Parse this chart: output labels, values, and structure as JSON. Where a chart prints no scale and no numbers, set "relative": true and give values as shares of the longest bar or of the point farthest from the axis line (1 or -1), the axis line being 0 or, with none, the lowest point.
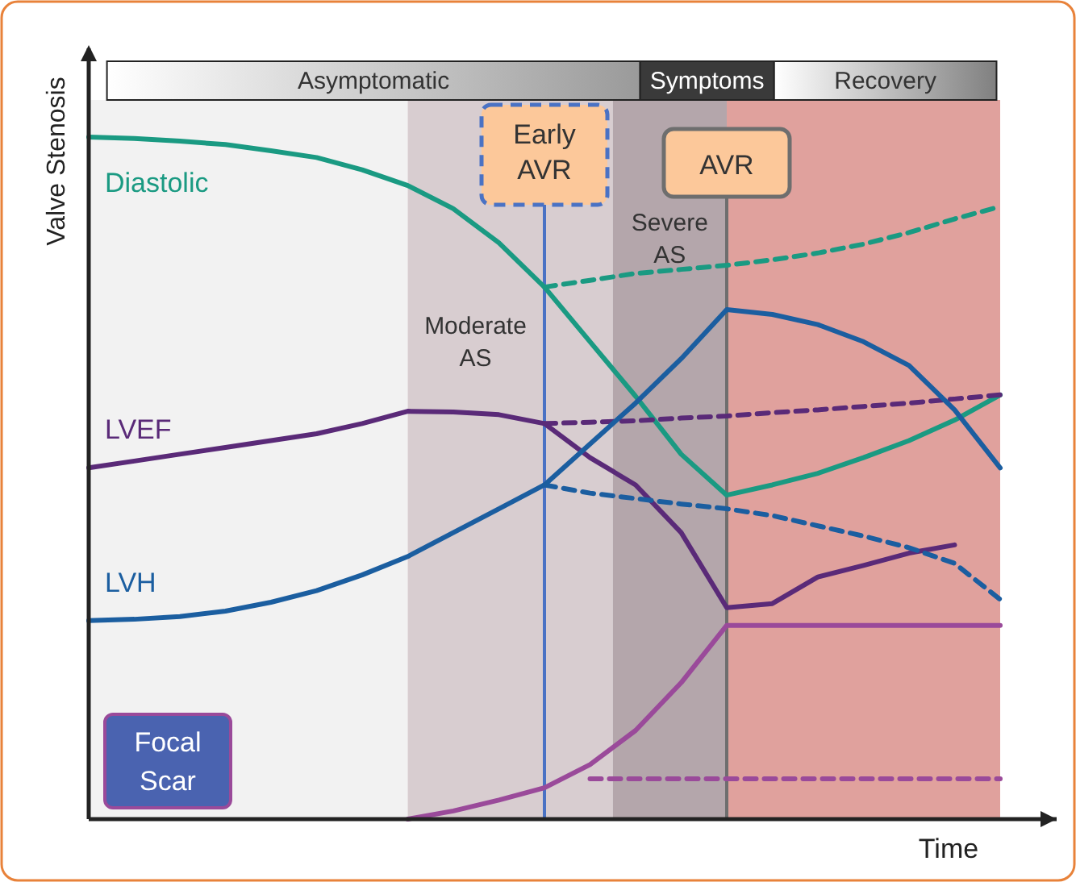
{
  "chart_data": {
    "type": "line",
    "relative": true,
    "xlabel": "Time",
    "ylabel": "Valve Stenosis",
    "categories": [
      null,
      null,
      null,
      null,
      null,
      null,
      null,
      null,
      null,
      null,
      null,
      null,
      null,
      null,
      null,
      null,
      null,
      null,
      null,
      null,
      null
    ],
    "annotations": [
      "Asymptomatic",
      "Symptoms",
      "Recovery",
      "Moderate AS",
      "Severe AS",
      "Early AVR",
      "AVR"
    ],
    "series": [
      {
        "name": "Diastolic",
        "color": "#1a9a82",
        "values": [
          1.0,
          0.998,
          0.994,
          0.989,
          0.98,
          0.97,
          0.952,
          0.929,
          0.895,
          0.845,
          0.78,
          0.7,
          0.62,
          0.535,
          0.475,
          0.49,
          0.507,
          0.53,
          0.555,
          0.585,
          0.622
        ]
      },
      {
        "color": "#1a9a82",
        "line_style": "dashed",
        "values": [
          null,
          null,
          null,
          null,
          null,
          null,
          null,
          null,
          null,
          null,
          0.78,
          0.79,
          0.8,
          0.806,
          0.812,
          0.82,
          0.83,
          0.843,
          0.86,
          0.88,
          0.898
        ]
      },
      {
        "name": "LVEF",
        "color": "#5a2a78",
        "values": [
          0.515,
          0.525,
          0.535,
          0.545,
          0.555,
          0.565,
          0.58,
          0.598,
          0.597,
          0.593,
          0.58,
          0.53,
          0.49,
          0.42,
          0.31,
          0.316,
          0.355,
          0.372,
          0.39,
          0.402,
          null
        ]
      },
      {
        "color": "#5a2a78",
        "line_style": "dashed",
        "values": [
          null,
          null,
          null,
          null,
          null,
          null,
          null,
          null,
          null,
          null,
          0.58,
          0.582,
          0.584,
          0.588,
          0.591,
          0.596,
          0.6,
          0.605,
          0.61,
          0.616,
          0.622
        ]
      },
      {
        "name": "LVH",
        "color": "#1b5ea0",
        "values": [
          0.291,
          0.293,
          0.297,
          0.305,
          0.318,
          0.335,
          0.358,
          0.385,
          0.42,
          0.455,
          0.49,
          0.55,
          0.61,
          0.675,
          0.747,
          0.74,
          0.725,
          0.7,
          0.665,
          0.6,
          0.515
        ]
      },
      {
        "color": "#1b5ea0",
        "line_style": "dashed",
        "values": [
          null,
          null,
          null,
          null,
          null,
          null,
          null,
          null,
          null,
          null,
          0.49,
          0.478,
          0.47,
          0.462,
          0.455,
          0.445,
          0.43,
          0.415,
          0.398,
          0.375,
          0.322
        ]
      },
      {
        "name": "Focal Scar",
        "color": "#9a4a9a",
        "values": [
          null,
          null,
          null,
          null,
          null,
          null,
          null,
          0,
          0.012,
          0.028,
          0.046,
          0.08,
          0.13,
          0.2,
          0.284,
          0.284,
          0.284,
          0.284,
          0.284,
          0.284,
          0.284
        ]
      },
      {
        "color": "#9a4a9a",
        "line_style": "dashed",
        "values": [
          null,
          null,
          null,
          null,
          null,
          null,
          null,
          null,
          null,
          null,
          null,
          0.059,
          0.059,
          0.059,
          0.059,
          0.059,
          0.059,
          0.059,
          0.059,
          0.059,
          0.059
        ]
      }
    ]
  }
}
